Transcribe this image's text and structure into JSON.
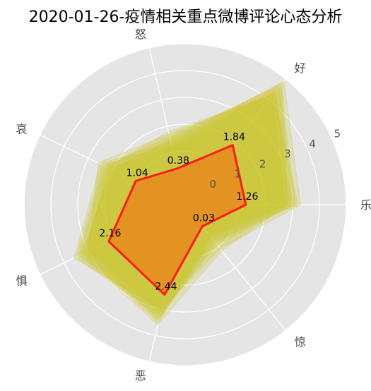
{
  "chart_data": {
    "type": "radar",
    "title": "2020-01-26-疫情相关重点微博评论心态分析",
    "axes": [
      "乐",
      "好",
      "怒",
      "哀",
      "惧",
      "恶",
      "惊"
    ],
    "radial_ticks": [
      "0",
      "1",
      "2",
      "3",
      "4",
      "5"
    ],
    "radial_range": [
      -1,
      5
    ],
    "grid": true,
    "main_series": {
      "values": [
        1.26,
        1.84,
        0.38,
        1.04,
        2.16,
        2.44,
        0.03
      ],
      "labels": [
        "1.26",
        "1.84",
        "0.38",
        "1.04",
        "2.16",
        "2.44",
        "0.03"
      ],
      "line_color": "#ff1a0d",
      "fill_color": "#e8861a"
    },
    "background_series": {
      "color": "#c9c21e",
      "values": [
        [
          3.1,
          4.7,
          1.6,
          2.3,
          3.4,
          3.2,
          0.9
        ],
        [
          2.9,
          4.4,
          1.2,
          2.1,
          3.2,
          3.5,
          0.6
        ],
        [
          3.3,
          4.9,
          1.4,
          2.5,
          3.6,
          3.0,
          1.1
        ],
        [
          2.7,
          4.2,
          1.8,
          2.2,
          3.1,
          3.4,
          0.5
        ],
        [
          3.0,
          4.6,
          1.3,
          2.4,
          3.5,
          3.3,
          0.8
        ],
        [
          2.8,
          4.8,
          1.5,
          2.0,
          3.3,
          3.6,
          1.2
        ],
        [
          3.2,
          4.3,
          1.7,
          2.6,
          3.0,
          3.1,
          0.7
        ]
      ]
    }
  }
}
